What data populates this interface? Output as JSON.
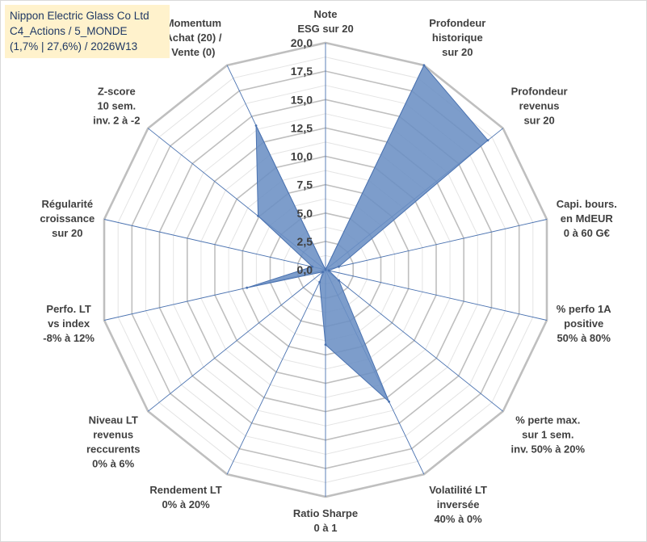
{
  "title_box": {
    "line1": "Nippon Electric Glass Co Ltd",
    "line2": "C4_Actions / 5_MONDE",
    "line3": "(1,7% | 27,6%) / 2026W13"
  },
  "chart_data": {
    "type": "radar",
    "scale": {
      "min": 0,
      "max": 20,
      "step": 2.5
    },
    "ticks": [
      "0,0",
      "2,5",
      "5,0",
      "7,5",
      "10,0",
      "12,5",
      "15,0",
      "17,5",
      "20,0"
    ],
    "axes": [
      {
        "label": [
          "Note",
          "ESG sur 20"
        ],
        "value": 0
      },
      {
        "label": [
          "Profondeur",
          "historique",
          "sur 20"
        ],
        "value": 20
      },
      {
        "label": [
          "Profondeur",
          "revenus",
          "sur 20"
        ],
        "value": 18.3
      },
      {
        "label": [
          "Capi. bours.",
          "en MdEUR",
          "0 à 60 G€"
        ],
        "value": 1.2
      },
      {
        "label": [
          "% perfo 1A",
          "positive",
          "50% à 80%"
        ],
        "value": 0.3
      },
      {
        "label": [
          "% perte max.",
          "sur 1 sem.",
          "inv. 50% à 20%"
        ],
        "value": 1.5
      },
      {
        "label": [
          "Volatilité LT",
          "inversée",
          "40% à 0%"
        ],
        "value": 12.9
      },
      {
        "label": [
          "Ratio Sharpe",
          "0 à 1"
        ],
        "value": 6.6
      },
      {
        "label": [
          "Rendement LT",
          "0% à 20%"
        ],
        "value": 1.2
      },
      {
        "label": [
          "Niveau LT",
          "revenus",
          "reccurents",
          "0% à 6%"
        ],
        "value": 0.3
      },
      {
        "label": [
          "Perfo. LT",
          "vs index",
          "-8% à 12%"
        ],
        "value": 7.1
      },
      {
        "label": [
          "Régularité",
          "croissance",
          "sur 20"
        ],
        "value": 1.2
      },
      {
        "label": [
          "Z-score",
          "10 sem.",
          "inv. 2 à -2"
        ],
        "value": 7.6
      },
      {
        "label": [
          "Momentum",
          "Achat (20) /",
          "Vente (0)"
        ],
        "value": 14.1
      }
    ],
    "colors": {
      "fill": "#6b8fc4",
      "line": "#4a72b0",
      "grid": "#c8c8c8",
      "spoke": "#4a72b0"
    }
  }
}
